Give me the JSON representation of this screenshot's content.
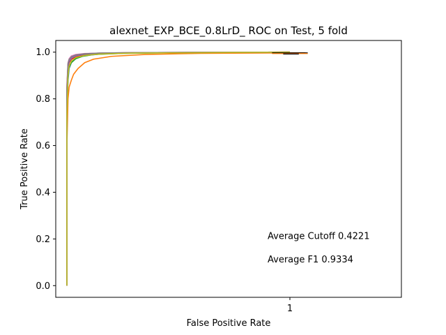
{
  "chart_data": {
    "type": "line",
    "title": "alexnet_EXP_BCE_0.8LrD_ ROC on Test, 5 fold",
    "xlabel": "False Positive Rate",
    "ylabel": "True Positive Rate",
    "xlim": [
      -0.05,
      1.5
    ],
    "ylim": [
      -0.05,
      1.05
    ],
    "xticks": [
      1
    ],
    "xtick_labels": [
      "1"
    ],
    "yticks": [
      0.0,
      0.2,
      0.4,
      0.6,
      0.8,
      1.0
    ],
    "ytick_labels": [
      "0.0",
      "0.2",
      "0.4",
      "0.6",
      "0.8",
      "1.0"
    ],
    "grid": false,
    "legend": "none",
    "annotations": [
      {
        "text": "Average Cutoff 0.4221",
        "x": 0.9,
        "y": 0.2
      },
      {
        "text": "Average F1 0.9334",
        "x": 0.9,
        "y": 0.1
      }
    ],
    "series": [
      {
        "color": "#1f77b4",
        "x": [
          0.0,
          0.0,
          0.005,
          0.01,
          0.02,
          0.04,
          0.08,
          0.15,
          0.3,
          0.6,
          1.0
        ],
        "y": [
          0.0,
          0.7,
          0.88,
          0.93,
          0.955,
          0.975,
          0.985,
          0.992,
          0.997,
          0.999,
          1.0
        ]
      },
      {
        "color": "#ff7f0e",
        "x": [
          0.0,
          0.0,
          0.005,
          0.01,
          0.02,
          0.03,
          0.05,
          0.08,
          0.12,
          0.2,
          0.35,
          0.6,
          1.0,
          1.07
        ],
        "y": [
          0.0,
          0.6,
          0.8,
          0.85,
          0.88,
          0.905,
          0.93,
          0.955,
          0.97,
          0.982,
          0.99,
          0.995,
          0.997,
          0.997
        ]
      },
      {
        "color": "#2ca02c",
        "x": [
          0.0,
          0.0,
          0.005,
          0.01,
          0.02,
          0.04,
          0.07,
          0.12,
          0.25,
          0.5,
          1.0
        ],
        "y": [
          0.0,
          0.75,
          0.9,
          0.935,
          0.955,
          0.972,
          0.982,
          0.99,
          0.995,
          0.998,
          1.0
        ]
      },
      {
        "color": "#d62728",
        "x": [
          0.0,
          0.0,
          0.005,
          0.01,
          0.02,
          0.04,
          0.08,
          0.15,
          0.3,
          0.6,
          1.0
        ],
        "y": [
          0.0,
          0.8,
          0.93,
          0.955,
          0.97,
          0.98,
          0.988,
          0.994,
          0.997,
          0.999,
          1.0
        ]
      },
      {
        "color": "#9467bd",
        "x": [
          0.0,
          0.0,
          0.005,
          0.01,
          0.02,
          0.04,
          0.08,
          0.15,
          0.3,
          0.6,
          1.0
        ],
        "y": [
          0.0,
          0.82,
          0.94,
          0.96,
          0.975,
          0.985,
          0.991,
          0.995,
          0.998,
          0.999,
          1.0
        ]
      },
      {
        "color": "#8c564b",
        "x": [
          0.0,
          0.0,
          0.005,
          0.01,
          0.02,
          0.04,
          0.08,
          0.15,
          0.3,
          0.6,
          1.0
        ],
        "y": [
          0.0,
          0.85,
          0.95,
          0.97,
          0.982,
          0.989,
          0.993,
          0.996,
          0.998,
          0.999,
          1.0
        ]
      },
      {
        "color": "#e377c2",
        "x": [
          0.0,
          0.0,
          0.005,
          0.01,
          0.02,
          0.04,
          0.08,
          0.15,
          0.3,
          0.6,
          1.0
        ],
        "y": [
          0.0,
          0.86,
          0.955,
          0.972,
          0.984,
          0.99,
          0.994,
          0.996,
          0.998,
          0.999,
          1.0
        ]
      },
      {
        "color": "#7f7f7f",
        "x": [
          0.0,
          0.0,
          0.005,
          0.01,
          0.02,
          0.04,
          0.08,
          0.15,
          0.3,
          0.6,
          1.0
        ],
        "y": [
          0.0,
          0.84,
          0.95,
          0.968,
          0.98,
          0.988,
          0.993,
          0.996,
          0.998,
          0.999,
          1.0
        ]
      },
      {
        "color": "#bcbd22",
        "x": [
          0.0,
          0.0,
          0.005,
          0.01,
          0.02,
          0.04,
          0.08,
          0.15,
          0.3,
          0.6,
          1.0
        ],
        "y": [
          0.0,
          0.72,
          0.9,
          0.94,
          0.962,
          0.977,
          0.986,
          0.992,
          0.996,
          0.998,
          1.0
        ]
      }
    ],
    "cutoff_markers": [
      {
        "color": "#000000",
        "x": [
          0.92,
          1.08
        ],
        "y": [
          0.997,
          0.997
        ]
      },
      {
        "color": "#ff7f0e",
        "x": [
          0.92,
          1.08
        ],
        "y": [
          0.994,
          0.994
        ]
      },
      {
        "color": "#000000",
        "x": [
          0.97,
          1.04
        ],
        "y": [
          0.992,
          0.992
        ]
      }
    ]
  }
}
